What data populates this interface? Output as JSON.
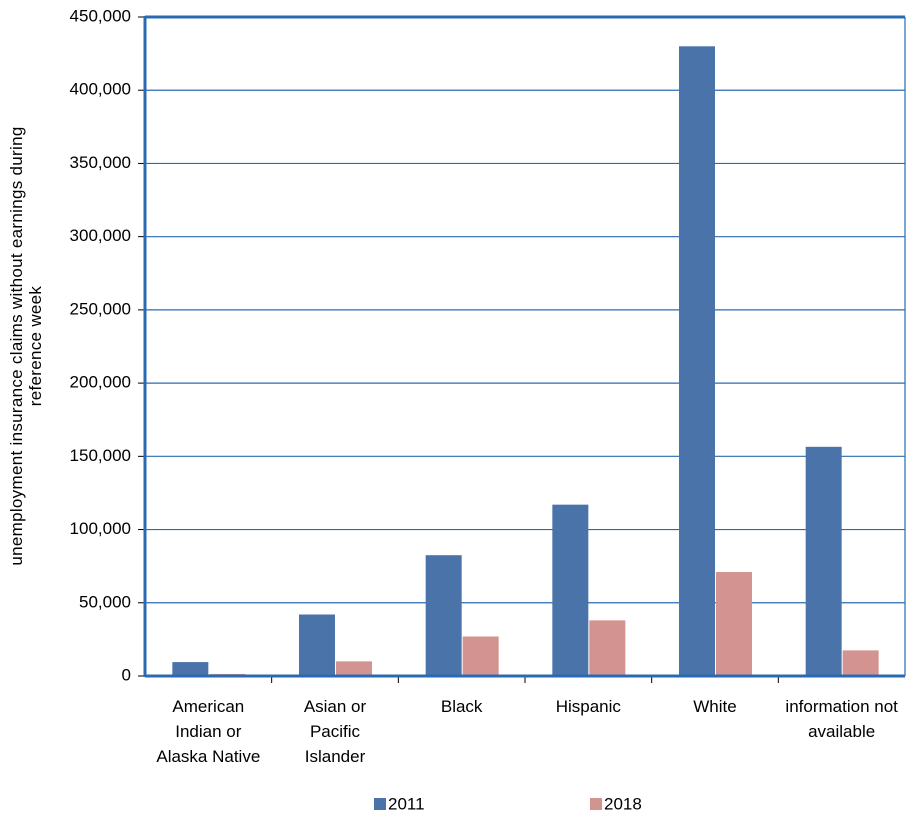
{
  "chart_data": {
    "type": "bar",
    "ylabel": "unemployment insurance claims without earnings during\nreference week",
    "categories": [
      "American\nIndian or\nAlaska Native",
      "Asian or\nPacific\nIslander",
      "Black",
      "Hispanic",
      "White",
      "information not\navailable"
    ],
    "series": [
      {
        "name": "2011",
        "color": "#4a74a9",
        "values": [
          9500,
          42000,
          82500,
          117000,
          430000,
          156500
        ]
      },
      {
        "name": "2018",
        "color": "#d39491",
        "values": [
          1400,
          10000,
          27000,
          38000,
          71000,
          17500
        ]
      }
    ],
    "ylim": [
      0,
      450000
    ],
    "yticks": [
      0,
      {
        "value": 50000,
        "label": "50,000"
      },
      {
        "value": 100000,
        "label": "100,000"
      },
      {
        "value": 150000,
        "label": "150,000"
      },
      {
        "value": 200000,
        "label": "200,000"
      },
      {
        "value": 250000,
        "label": "250,000"
      },
      {
        "value": 300000,
        "label": "300,000"
      },
      {
        "value": 350000,
        "label": "350,000"
      },
      {
        "value": 400000,
        "label": "400,000"
      },
      {
        "value": 450000,
        "label": "450,000"
      }
    ],
    "grid": true,
    "legend": "bottom"
  }
}
